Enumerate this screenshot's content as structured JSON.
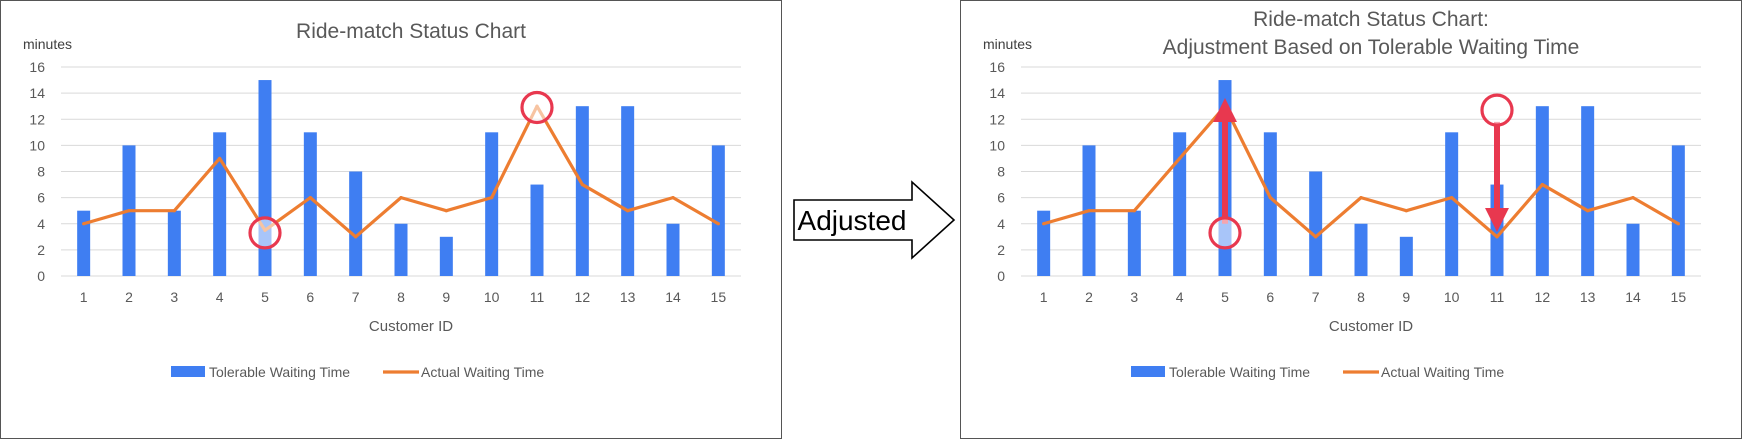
{
  "colors": {
    "bar": "#3f7ef2",
    "line": "#ed7d31",
    "marker": "#e8384f",
    "grid": "#d9d9d9",
    "text": "#595959"
  },
  "arrow_label": "Adjusted",
  "chart_data": [
    {
      "type": "bar",
      "title": [
        "Ride-match Status Chart"
      ],
      "xlabel": "Customer ID",
      "ylabel": "minutes",
      "ylim": [
        0,
        16
      ],
      "yticks": [
        0,
        2,
        4,
        6,
        8,
        10,
        12,
        14,
        16
      ],
      "categories": [
        "1",
        "2",
        "3",
        "4",
        "5",
        "6",
        "7",
        "8",
        "9",
        "10",
        "11",
        "12",
        "13",
        "14",
        "15"
      ],
      "series": [
        {
          "name": "Tolerable Waiting Time",
          "type": "bar",
          "values": [
            5,
            10,
            5,
            11,
            15,
            11,
            8,
            4,
            3,
            11,
            7,
            13,
            13,
            4,
            10
          ]
        },
        {
          "name": "Actual Waiting Time",
          "type": "line",
          "values": [
            4,
            5,
            5,
            9,
            3.5,
            6,
            3,
            6,
            5,
            6,
            13,
            7,
            5,
            6,
            4
          ]
        }
      ],
      "highlights": [
        {
          "category": "5",
          "value": 3.3,
          "marker": "circle"
        },
        {
          "category": "11",
          "value": 12.9,
          "marker": "circle"
        }
      ],
      "arrows": [],
      "grid": true,
      "legend": "bottom"
    },
    {
      "type": "bar",
      "title": [
        "Ride-match Status Chart:",
        "Adjustment Based on Tolerable Waiting Time"
      ],
      "xlabel": "Customer ID",
      "ylabel": "minutes",
      "ylim": [
        0,
        16
      ],
      "yticks": [
        0,
        2,
        4,
        6,
        8,
        10,
        12,
        14,
        16
      ],
      "categories": [
        "1",
        "2",
        "3",
        "4",
        "5",
        "6",
        "7",
        "8",
        "9",
        "10",
        "11",
        "12",
        "13",
        "14",
        "15"
      ],
      "series": [
        {
          "name": "Tolerable Waiting Time",
          "type": "bar",
          "values": [
            5,
            10,
            5,
            11,
            15,
            11,
            8,
            4,
            3,
            11,
            7,
            13,
            13,
            4,
            10
          ]
        },
        {
          "name": "Actual Waiting Time",
          "type": "line",
          "values": [
            4,
            5,
            5,
            9,
            13,
            6,
            3,
            6,
            5,
            6,
            3,
            7,
            5,
            6,
            4
          ]
        }
      ],
      "highlights": [
        {
          "category": "5",
          "value": 3.3,
          "marker": "circle"
        },
        {
          "category": "11",
          "value": 12.7,
          "marker": "circle"
        }
      ],
      "arrows": [
        {
          "category": "5",
          "from": 4,
          "to": 12.8
        },
        {
          "category": "11",
          "from": 11.8,
          "to": 4.2
        }
      ],
      "grid": true,
      "legend": "bottom"
    }
  ]
}
